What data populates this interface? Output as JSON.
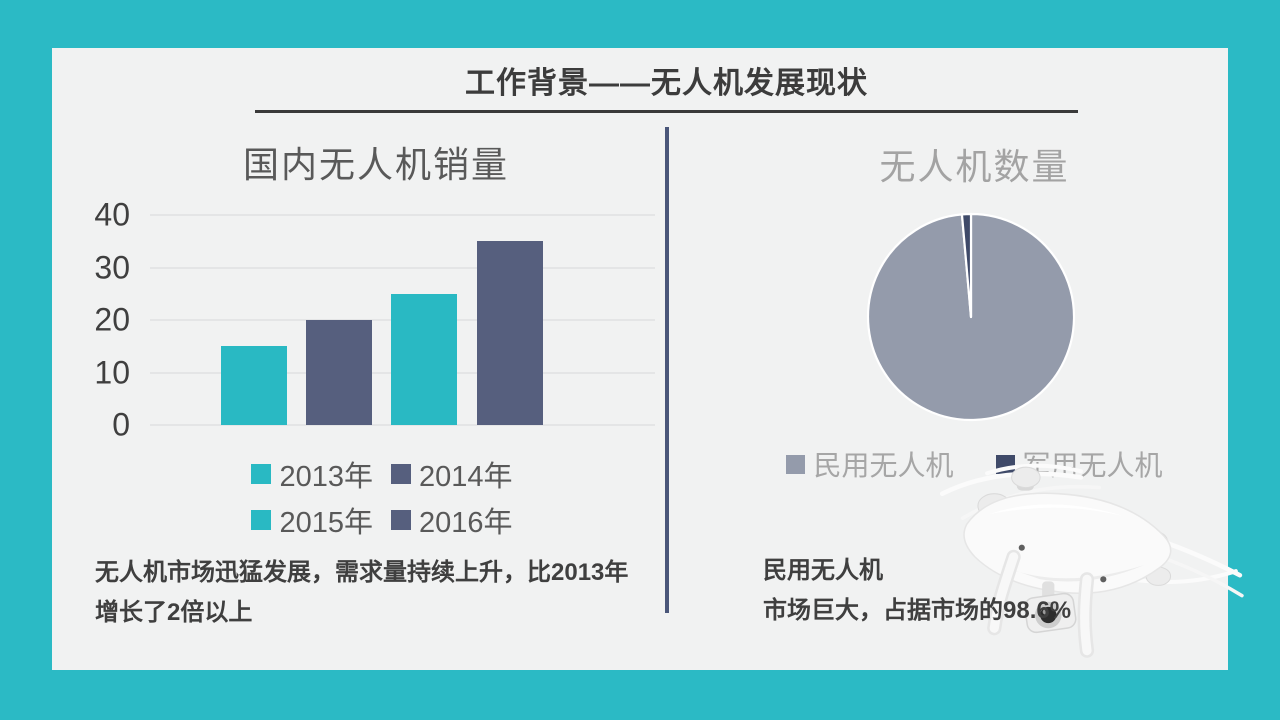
{
  "slide": {
    "header": {
      "title": "工作背景——无人机发展现状"
    },
    "left_panel": {
      "caption_line1": "无人机市场迅猛发展，需求量持续上升，比2013年",
      "caption_line2": "增长了2倍以上"
    },
    "right_panel": {
      "caption_line1": "民用无人机",
      "caption_line2": "市场巨大，占据市场的98.6%"
    },
    "colors": {
      "background_teal": "#2BBAC5",
      "card_background": "#F1F2F2",
      "accent_teal": "#29B9C3",
      "accent_slate": "#565F7E",
      "pie_civil_gray": "#949BAB",
      "pie_military_navy": "#3F4A69",
      "divider_blue": "#4A5679",
      "dark_text": "#3F3F3F"
    }
  },
  "chart_data": [
    {
      "type": "bar",
      "title": "国内无人机销量",
      "categories": [
        "2013年",
        "2014年",
        "2015年",
        "2016年"
      ],
      "values": [
        15,
        20,
        25,
        35
      ],
      "colors": [
        "#29B9C3",
        "#565F7E",
        "#29B9C3",
        "#565F7E"
      ],
      "ylim": [
        0,
        40
      ],
      "yticks": [
        0,
        10,
        20,
        30,
        40
      ],
      "grid": true,
      "legend_position": "bottom"
    },
    {
      "type": "pie",
      "title": "无人机数量",
      "labels": [
        "民用无人机",
        "军用无人机"
      ],
      "values": [
        98.6,
        1.4
      ],
      "colors": [
        "#949BAB",
        "#3F4A69"
      ],
      "start_angle_deg": 0,
      "legend_position": "bottom"
    }
  ]
}
